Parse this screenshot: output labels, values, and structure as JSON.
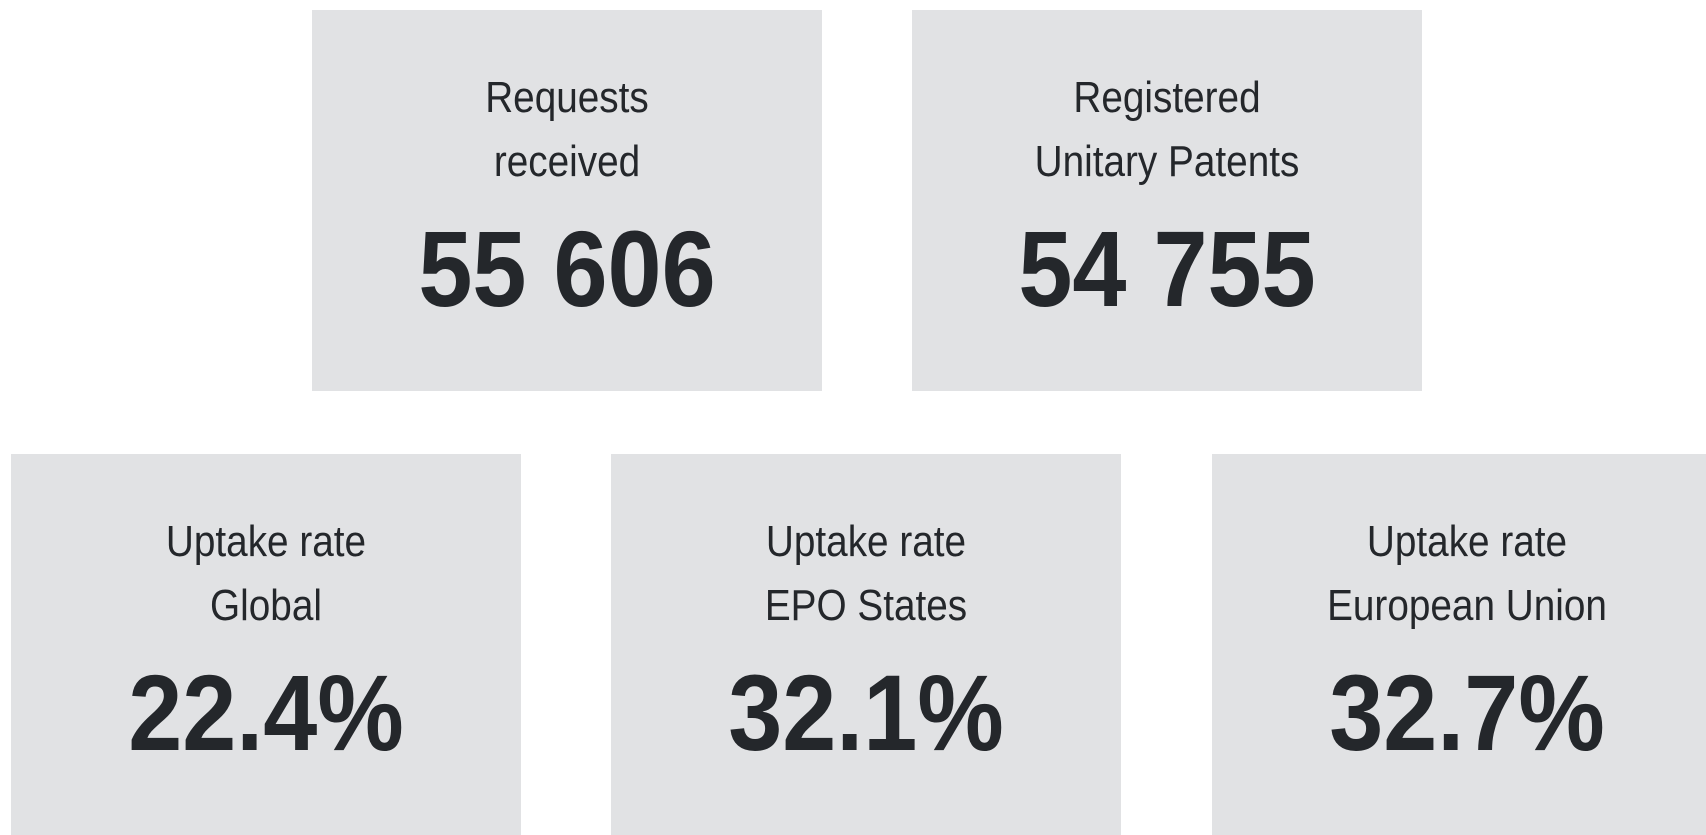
{
  "cards": [
    {
      "label_lines": [
        "Requests",
        "received"
      ],
      "value": "55 606"
    },
    {
      "label_lines": [
        "Registered",
        "Unitary Patents"
      ],
      "value": "54 755"
    },
    {
      "label_lines": [
        "Uptake rate",
        "Global"
      ],
      "value": "22.4%"
    },
    {
      "label_lines": [
        "Uptake rate",
        "EPO States"
      ],
      "value": "32.1%"
    },
    {
      "label_lines": [
        "Uptake rate",
        "European Union"
      ],
      "value": "32.7%"
    }
  ]
}
